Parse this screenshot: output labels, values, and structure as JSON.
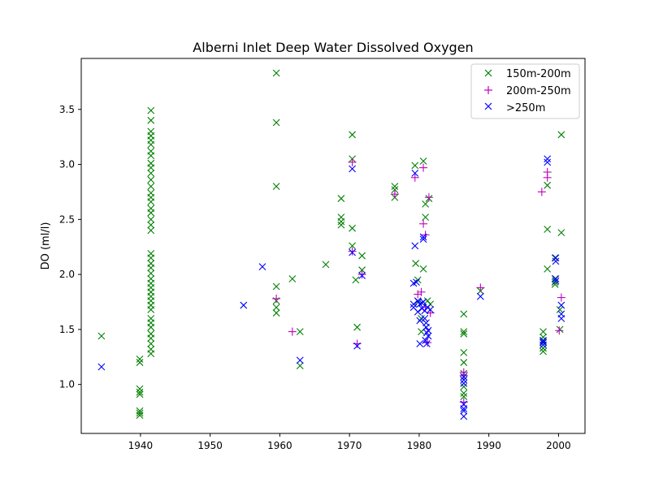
{
  "chart_data": {
    "type": "scatter",
    "title": "Alberni Inlet Deep Water Dissolved Oxygen",
    "xlabel": "",
    "ylabel": "DO (ml/l)",
    "xlim": [
      1931.5,
      2003.8
    ],
    "ylim": [
      0.555,
      3.963
    ],
    "xticks": [
      1940,
      1950,
      1960,
      1970,
      1980,
      1990,
      2000
    ],
    "yticks": [
      1.0,
      1.5,
      2.0,
      2.5,
      3.0,
      3.5
    ],
    "xtick_labels": [
      "1940",
      "1950",
      "1960",
      "1970",
      "1980",
      "1990",
      "2000"
    ],
    "ytick_labels": [
      "1.0",
      "1.5",
      "2.0",
      "2.5",
      "3.0",
      "3.5"
    ],
    "grid": false,
    "legend_position": "top-right",
    "series": [
      {
        "name": "150m-200m",
        "marker": "x",
        "color": "#008000",
        "points": [
          [
            1934.4,
            1.44
          ],
          [
            1939.9,
            1.23
          ],
          [
            1939.9,
            1.2
          ],
          [
            1939.9,
            0.96
          ],
          [
            1939.9,
            0.93
          ],
          [
            1939.9,
            0.91
          ],
          [
            1939.9,
            0.76
          ],
          [
            1939.9,
            0.74
          ],
          [
            1939.9,
            0.72
          ],
          [
            1941.5,
            3.49
          ],
          [
            1941.5,
            3.4
          ],
          [
            1941.5,
            3.3
          ],
          [
            1941.5,
            3.26
          ],
          [
            1941.5,
            3.22
          ],
          [
            1941.5,
            3.18
          ],
          [
            1941.5,
            3.12
          ],
          [
            1941.5,
            3.08
          ],
          [
            1941.5,
            3.01
          ],
          [
            1941.5,
            2.97
          ],
          [
            1941.5,
            2.92
          ],
          [
            1941.5,
            2.86
          ],
          [
            1941.5,
            2.8
          ],
          [
            1941.5,
            2.74
          ],
          [
            1941.5,
            2.7
          ],
          [
            1941.5,
            2.66
          ],
          [
            1941.5,
            2.6
          ],
          [
            1941.5,
            2.56
          ],
          [
            1941.5,
            2.5
          ],
          [
            1941.5,
            2.45
          ],
          [
            1941.5,
            2.4
          ],
          [
            1941.5,
            2.19
          ],
          [
            1941.5,
            2.15
          ],
          [
            1941.5,
            2.1
          ],
          [
            1941.5,
            2.06
          ],
          [
            1941.5,
            2.01
          ],
          [
            1941.5,
            1.96
          ],
          [
            1941.5,
            1.92
          ],
          [
            1941.5,
            1.88
          ],
          [
            1941.5,
            1.84
          ],
          [
            1941.5,
            1.8
          ],
          [
            1941.5,
            1.76
          ],
          [
            1941.5,
            1.72
          ],
          [
            1941.5,
            1.68
          ],
          [
            1941.5,
            1.6
          ],
          [
            1941.5,
            1.56
          ],
          [
            1941.5,
            1.52
          ],
          [
            1941.5,
            1.46
          ],
          [
            1941.5,
            1.42
          ],
          [
            1941.5,
            1.37
          ],
          [
            1941.5,
            1.32
          ],
          [
            1941.5,
            1.28
          ],
          [
            1959.5,
            3.83
          ],
          [
            1959.5,
            3.38
          ],
          [
            1959.5,
            2.8
          ],
          [
            1959.5,
            1.89
          ],
          [
            1959.5,
            1.76
          ],
          [
            1959.5,
            1.7
          ],
          [
            1959.5,
            1.65
          ],
          [
            1961.8,
            1.96
          ],
          [
            1962.9,
            1.48
          ],
          [
            1962.9,
            1.17
          ],
          [
            1966.6,
            2.09
          ],
          [
            1968.8,
            2.69
          ],
          [
            1968.8,
            2.52
          ],
          [
            1968.8,
            2.48
          ],
          [
            1968.8,
            2.45
          ],
          [
            1970.4,
            3.27
          ],
          [
            1970.4,
            3.05
          ],
          [
            1970.4,
            2.42
          ],
          [
            1970.4,
            2.26
          ],
          [
            1970.9,
            1.95
          ],
          [
            1971.1,
            1.52
          ],
          [
            1971.8,
            2.17
          ],
          [
            1971.8,
            2.04
          ],
          [
            1976.5,
            2.8
          ],
          [
            1976.5,
            2.77
          ],
          [
            1976.5,
            2.7
          ],
          [
            1979.4,
            2.99
          ],
          [
            1979.5,
            2.1
          ],
          [
            1979.8,
            1.95
          ],
          [
            1979.9,
            1.75
          ],
          [
            1980.3,
            1.6
          ],
          [
            1980.3,
            1.48
          ],
          [
            1980.6,
            2.05
          ],
          [
            1980.6,
            3.03
          ],
          [
            1980.9,
            2.64
          ],
          [
            1980.9,
            2.52
          ],
          [
            1981.2,
            1.76
          ],
          [
            1981.4,
            2.69
          ],
          [
            1981.6,
            1.73
          ],
          [
            1986.4,
            1.64
          ],
          [
            1986.4,
            1.48
          ],
          [
            1986.4,
            1.46
          ],
          [
            1986.4,
            1.29
          ],
          [
            1986.4,
            1.2
          ],
          [
            1986.4,
            1.1
          ],
          [
            1986.4,
            0.98
          ],
          [
            1986.4,
            0.92
          ],
          [
            1986.4,
            0.89
          ],
          [
            1988.8,
            1.85
          ],
          [
            1997.8,
            1.48
          ],
          [
            1997.8,
            1.43
          ],
          [
            1997.8,
            1.39
          ],
          [
            1997.8,
            1.33
          ],
          [
            1997.8,
            1.3
          ],
          [
            1998.4,
            2.81
          ],
          [
            1998.4,
            2.41
          ],
          [
            1998.4,
            2.05
          ],
          [
            1999.5,
            2.15
          ],
          [
            1999.5,
            1.96
          ],
          [
            1999.5,
            1.93
          ],
          [
            1999.5,
            1.91
          ],
          [
            2000.2,
            1.68
          ],
          [
            2000.2,
            1.5
          ],
          [
            2000.4,
            3.27
          ],
          [
            2000.4,
            2.38
          ]
        ]
      },
      {
        "name": "200m-250m",
        "marker": "+",
        "color": "#bf00bf",
        "points": [
          [
            1959.5,
            1.78
          ],
          [
            1961.8,
            1.48
          ],
          [
            1970.4,
            3.02
          ],
          [
            1970.4,
            2.21
          ],
          [
            1971.1,
            1.37
          ],
          [
            1971.8,
            2.0
          ],
          [
            1976.5,
            2.73
          ],
          [
            1979.4,
            2.88
          ],
          [
            1979.8,
            1.82
          ],
          [
            1980.3,
            1.84
          ],
          [
            1980.6,
            2.97
          ],
          [
            1980.6,
            2.46
          ],
          [
            1980.9,
            2.36
          ],
          [
            1980.9,
            1.7
          ],
          [
            1981.2,
            1.38
          ],
          [
            1981.4,
            2.7
          ],
          [
            1981.6,
            1.65
          ],
          [
            1986.4,
            1.11
          ],
          [
            1986.4,
            1.08
          ],
          [
            1986.4,
            0.84
          ],
          [
            1988.8,
            1.88
          ],
          [
            1997.6,
            2.75
          ],
          [
            1998.4,
            2.93
          ],
          [
            1998.4,
            2.88
          ],
          [
            2000.1,
            1.49
          ],
          [
            2000.4,
            1.79
          ]
        ]
      },
      {
        "name": ">250m",
        "marker": "x",
        "color": "#0000ff",
        "points": [
          [
            1934.4,
            1.16
          ],
          [
            1954.8,
            1.72
          ],
          [
            1957.5,
            2.07
          ],
          [
            1962.9,
            1.22
          ],
          [
            1970.4,
            2.96
          ],
          [
            1970.4,
            2.2
          ],
          [
            1971.1,
            1.35
          ],
          [
            1971.8,
            1.99
          ],
          [
            1979.4,
            2.92
          ],
          [
            1979.4,
            2.26
          ],
          [
            1979.2,
            1.92
          ],
          [
            1979.2,
            1.73
          ],
          [
            1979.2,
            1.7
          ],
          [
            1979.6,
            1.93
          ],
          [
            1979.8,
            1.76
          ],
          [
            1979.8,
            1.66
          ],
          [
            1980.1,
            1.73
          ],
          [
            1980.1,
            1.58
          ],
          [
            1980.1,
            1.37
          ],
          [
            1980.4,
            1.74
          ],
          [
            1980.4,
            1.69
          ],
          [
            1980.6,
            2.34
          ],
          [
            1980.6,
            2.32
          ],
          [
            1980.6,
            1.75
          ],
          [
            1980.8,
            1.67
          ],
          [
            1980.8,
            1.6
          ],
          [
            1980.9,
            1.4
          ],
          [
            1981.0,
            1.56
          ],
          [
            1981.0,
            1.52
          ],
          [
            1981.1,
            1.37
          ],
          [
            1981.1,
            1.47
          ],
          [
            1981.2,
            1.7
          ],
          [
            1981.3,
            1.44
          ],
          [
            1981.3,
            1.49
          ],
          [
            1981.6,
            1.68
          ],
          [
            1986.4,
            1.07
          ],
          [
            1986.4,
            1.04
          ],
          [
            1986.4,
            1.01
          ],
          [
            1986.4,
            0.82
          ],
          [
            1986.4,
            0.78
          ],
          [
            1986.4,
            0.76
          ],
          [
            1986.4,
            0.71
          ],
          [
            1988.8,
            1.8
          ],
          [
            1997.8,
            1.4
          ],
          [
            1997.8,
            1.38
          ],
          [
            1997.8,
            1.36
          ],
          [
            1998.4,
            3.05
          ],
          [
            1998.4,
            3.02
          ],
          [
            1999.6,
            2.15
          ],
          [
            1999.6,
            2.12
          ],
          [
            1999.6,
            1.96
          ],
          [
            1999.6,
            1.94
          ],
          [
            2000.4,
            1.72
          ],
          [
            2000.4,
            1.64
          ],
          [
            2000.4,
            1.6
          ]
        ]
      }
    ]
  }
}
